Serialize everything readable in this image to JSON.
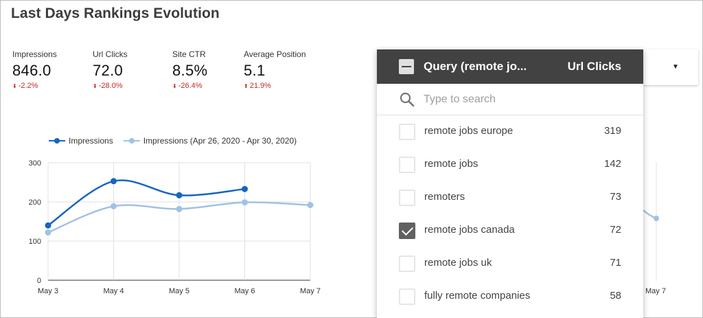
{
  "title": "Last Days Rankings Evolution",
  "kpis": [
    {
      "label": "Impressions",
      "value": "846.0",
      "delta": "-2.2%",
      "direction": "down"
    },
    {
      "label": "Url Clicks",
      "value": "72.0",
      "delta": "-28.0%",
      "direction": "down"
    },
    {
      "label": "Site CTR",
      "value": "8.5%",
      "delta": "-26.4%",
      "direction": "down"
    },
    {
      "label": "Average Position",
      "value": "5.1",
      "delta": "21.9%",
      "direction": "up"
    }
  ],
  "colors": {
    "accent_dark": "#1565c0",
    "accent_light": "#9fc2e7",
    "negative": "#c62828",
    "panel_header": "#424242"
  },
  "chart_data": {
    "type": "line",
    "x": [
      "May 3",
      "May 4",
      "May 5",
      "May 6",
      "May 7"
    ],
    "series": [
      {
        "name": "Impressions",
        "values": [
          140,
          253,
          217,
          233,
          null
        ]
      },
      {
        "name": "Impressions (Apr 26, 2020 - Apr 30, 2020)",
        "values": [
          122,
          189,
          182,
          199,
          192
        ]
      }
    ],
    "yticks": [
      0,
      100,
      200,
      300
    ],
    "ylim": [
      0,
      300
    ],
    "grid": true,
    "legend": "top"
  },
  "filter_panel": {
    "header_title": "Query (remote jo...",
    "header_metric": "Url Clicks",
    "search_placeholder": "Type to search",
    "search_value": "",
    "items": [
      {
        "label": "remote jobs europe",
        "value": "319",
        "checked": false
      },
      {
        "label": "remote jobs",
        "value": "142",
        "checked": false
      },
      {
        "label": "remoters",
        "value": "73",
        "checked": false
      },
      {
        "label": "remote jobs canada",
        "value": "72",
        "checked": true
      },
      {
        "label": "remote jobs uk",
        "value": "71",
        "checked": false
      },
      {
        "label": "fully remote companies",
        "value": "58",
        "checked": false
      }
    ]
  },
  "right_chart": {
    "x_tick": "May 7"
  },
  "icons": {
    "search": "search-icon",
    "dropdown": "caret-down-icon",
    "checkbox": "checkbox-icon"
  }
}
